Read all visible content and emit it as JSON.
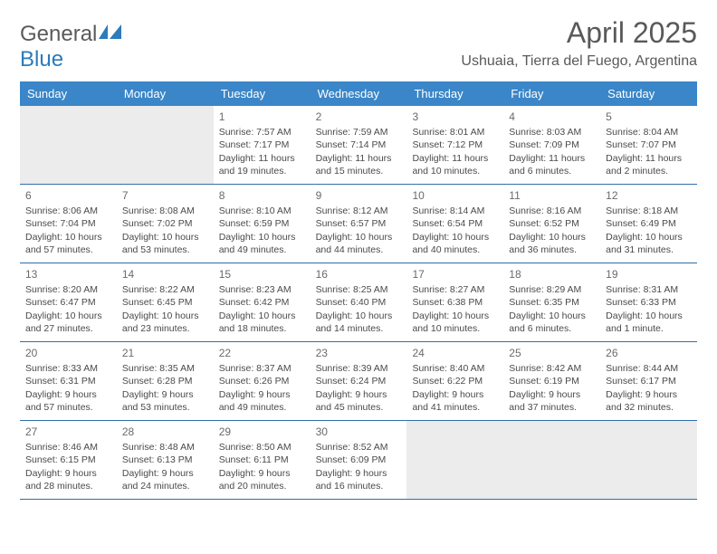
{
  "logo": {
    "text1": "General",
    "text2": "Blue"
  },
  "title": "April 2025",
  "location": "Ushuaia, Tierra del Fuego, Argentina",
  "colors": {
    "header_bg": "#3a86c8",
    "header_text": "#ffffff",
    "rule": "#2f6fa8",
    "dim_bg": "#ececec",
    "body_text": "#4a4a4a",
    "title_text": "#595959",
    "logo_accent": "#2b7bbd",
    "logo_gray": "#5a5a5a",
    "background": "#ffffff"
  },
  "typography": {
    "title_fontsize": 32,
    "location_fontsize": 16,
    "header_fontsize": 13,
    "daynum_fontsize": 12,
    "cell_fontsize": 10.5
  },
  "day_names": [
    "Sunday",
    "Monday",
    "Tuesday",
    "Wednesday",
    "Thursday",
    "Friday",
    "Saturday"
  ],
  "weeks": [
    [
      {
        "day": "",
        "dim": true
      },
      {
        "day": "",
        "dim": true
      },
      {
        "day": "1",
        "sunrise": "Sunrise: 7:57 AM",
        "sunset": "Sunset: 7:17 PM",
        "daylight": "Daylight: 11 hours and 19 minutes."
      },
      {
        "day": "2",
        "sunrise": "Sunrise: 7:59 AM",
        "sunset": "Sunset: 7:14 PM",
        "daylight": "Daylight: 11 hours and 15 minutes."
      },
      {
        "day": "3",
        "sunrise": "Sunrise: 8:01 AM",
        "sunset": "Sunset: 7:12 PM",
        "daylight": "Daylight: 11 hours and 10 minutes."
      },
      {
        "day": "4",
        "sunrise": "Sunrise: 8:03 AM",
        "sunset": "Sunset: 7:09 PM",
        "daylight": "Daylight: 11 hours and 6 minutes."
      },
      {
        "day": "5",
        "sunrise": "Sunrise: 8:04 AM",
        "sunset": "Sunset: 7:07 PM",
        "daylight": "Daylight: 11 hours and 2 minutes."
      }
    ],
    [
      {
        "day": "6",
        "sunrise": "Sunrise: 8:06 AM",
        "sunset": "Sunset: 7:04 PM",
        "daylight": "Daylight: 10 hours and 57 minutes."
      },
      {
        "day": "7",
        "sunrise": "Sunrise: 8:08 AM",
        "sunset": "Sunset: 7:02 PM",
        "daylight": "Daylight: 10 hours and 53 minutes."
      },
      {
        "day": "8",
        "sunrise": "Sunrise: 8:10 AM",
        "sunset": "Sunset: 6:59 PM",
        "daylight": "Daylight: 10 hours and 49 minutes."
      },
      {
        "day": "9",
        "sunrise": "Sunrise: 8:12 AM",
        "sunset": "Sunset: 6:57 PM",
        "daylight": "Daylight: 10 hours and 44 minutes."
      },
      {
        "day": "10",
        "sunrise": "Sunrise: 8:14 AM",
        "sunset": "Sunset: 6:54 PM",
        "daylight": "Daylight: 10 hours and 40 minutes."
      },
      {
        "day": "11",
        "sunrise": "Sunrise: 8:16 AM",
        "sunset": "Sunset: 6:52 PM",
        "daylight": "Daylight: 10 hours and 36 minutes."
      },
      {
        "day": "12",
        "sunrise": "Sunrise: 8:18 AM",
        "sunset": "Sunset: 6:49 PM",
        "daylight": "Daylight: 10 hours and 31 minutes."
      }
    ],
    [
      {
        "day": "13",
        "sunrise": "Sunrise: 8:20 AM",
        "sunset": "Sunset: 6:47 PM",
        "daylight": "Daylight: 10 hours and 27 minutes."
      },
      {
        "day": "14",
        "sunrise": "Sunrise: 8:22 AM",
        "sunset": "Sunset: 6:45 PM",
        "daylight": "Daylight: 10 hours and 23 minutes."
      },
      {
        "day": "15",
        "sunrise": "Sunrise: 8:23 AM",
        "sunset": "Sunset: 6:42 PM",
        "daylight": "Daylight: 10 hours and 18 minutes."
      },
      {
        "day": "16",
        "sunrise": "Sunrise: 8:25 AM",
        "sunset": "Sunset: 6:40 PM",
        "daylight": "Daylight: 10 hours and 14 minutes."
      },
      {
        "day": "17",
        "sunrise": "Sunrise: 8:27 AM",
        "sunset": "Sunset: 6:38 PM",
        "daylight": "Daylight: 10 hours and 10 minutes."
      },
      {
        "day": "18",
        "sunrise": "Sunrise: 8:29 AM",
        "sunset": "Sunset: 6:35 PM",
        "daylight": "Daylight: 10 hours and 6 minutes."
      },
      {
        "day": "19",
        "sunrise": "Sunrise: 8:31 AM",
        "sunset": "Sunset: 6:33 PM",
        "daylight": "Daylight: 10 hours and 1 minute."
      }
    ],
    [
      {
        "day": "20",
        "sunrise": "Sunrise: 8:33 AM",
        "sunset": "Sunset: 6:31 PM",
        "daylight": "Daylight: 9 hours and 57 minutes."
      },
      {
        "day": "21",
        "sunrise": "Sunrise: 8:35 AM",
        "sunset": "Sunset: 6:28 PM",
        "daylight": "Daylight: 9 hours and 53 minutes."
      },
      {
        "day": "22",
        "sunrise": "Sunrise: 8:37 AM",
        "sunset": "Sunset: 6:26 PM",
        "daylight": "Daylight: 9 hours and 49 minutes."
      },
      {
        "day": "23",
        "sunrise": "Sunrise: 8:39 AM",
        "sunset": "Sunset: 6:24 PM",
        "daylight": "Daylight: 9 hours and 45 minutes."
      },
      {
        "day": "24",
        "sunrise": "Sunrise: 8:40 AM",
        "sunset": "Sunset: 6:22 PM",
        "daylight": "Daylight: 9 hours and 41 minutes."
      },
      {
        "day": "25",
        "sunrise": "Sunrise: 8:42 AM",
        "sunset": "Sunset: 6:19 PM",
        "daylight": "Daylight: 9 hours and 37 minutes."
      },
      {
        "day": "26",
        "sunrise": "Sunrise: 8:44 AM",
        "sunset": "Sunset: 6:17 PM",
        "daylight": "Daylight: 9 hours and 32 minutes."
      }
    ],
    [
      {
        "day": "27",
        "sunrise": "Sunrise: 8:46 AM",
        "sunset": "Sunset: 6:15 PM",
        "daylight": "Daylight: 9 hours and 28 minutes."
      },
      {
        "day": "28",
        "sunrise": "Sunrise: 8:48 AM",
        "sunset": "Sunset: 6:13 PM",
        "daylight": "Daylight: 9 hours and 24 minutes."
      },
      {
        "day": "29",
        "sunrise": "Sunrise: 8:50 AM",
        "sunset": "Sunset: 6:11 PM",
        "daylight": "Daylight: 9 hours and 20 minutes."
      },
      {
        "day": "30",
        "sunrise": "Sunrise: 8:52 AM",
        "sunset": "Sunset: 6:09 PM",
        "daylight": "Daylight: 9 hours and 16 minutes."
      },
      {
        "day": "",
        "dim": true
      },
      {
        "day": "",
        "dim": true
      },
      {
        "day": "",
        "dim": true
      }
    ]
  ]
}
